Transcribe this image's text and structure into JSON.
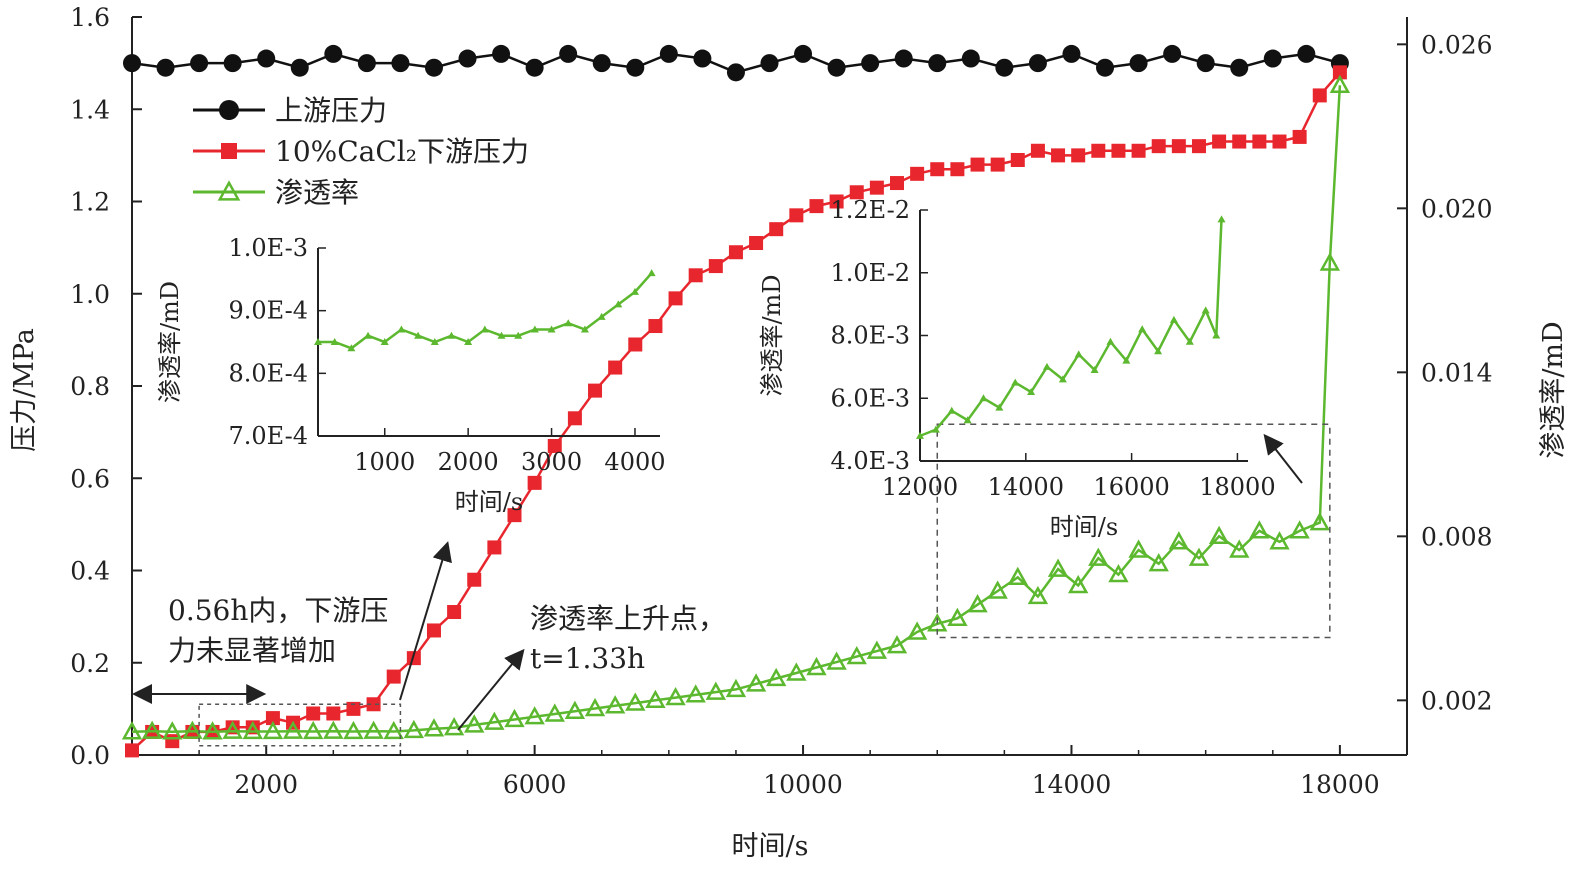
{
  "chart_data": {
    "type": "line",
    "title": "",
    "xlabel": "时间/s",
    "ylabel_left": "压力/MPa",
    "ylabel_right": "渗透率/mD",
    "xlim": [
      0,
      19000
    ],
    "ylim_left": [
      0,
      1.6
    ],
    "ylim_right": [
      0,
      0.027
    ],
    "x_ticks": [
      "2000",
      "6000",
      "10000",
      "14000",
      "18000"
    ],
    "x_tick_values": [
      2000,
      6000,
      10000,
      14000,
      18000
    ],
    "y_left_ticks": [
      "0.0",
      "0.2",
      "0.4",
      "0.6",
      "0.8",
      "1.0",
      "1.2",
      "1.4",
      "1.6"
    ],
    "y_left_tick_values": [
      0,
      0.2,
      0.4,
      0.6,
      0.8,
      1.0,
      1.2,
      1.4,
      1.6
    ],
    "y_right_ticks": [
      "0.002",
      "0.008",
      "0.014",
      "0.020",
      "0.026"
    ],
    "y_right_tick_values": [
      0.002,
      0.008,
      0.014,
      0.02,
      0.026
    ],
    "legend_position": "top-left",
    "colors": {
      "upstream": "#111111",
      "downstream": "#e8262d",
      "permeability": "#5cb82e"
    },
    "series": [
      {
        "name": "上游压力",
        "axis": "left",
        "marker": "circle",
        "x": [
          0,
          500,
          1000,
          1500,
          2000,
          2500,
          3000,
          3500,
          4000,
          4500,
          5000,
          5500,
          6000,
          6500,
          7000,
          7500,
          8000,
          8500,
          9000,
          9500,
          10000,
          10500,
          11000,
          11500,
          12000,
          12500,
          13000,
          13500,
          14000,
          14500,
          15000,
          15500,
          16000,
          16500,
          17000,
          17500,
          18000
        ],
        "values": [
          1.5,
          1.49,
          1.5,
          1.5,
          1.51,
          1.49,
          1.52,
          1.5,
          1.5,
          1.49,
          1.51,
          1.52,
          1.49,
          1.52,
          1.5,
          1.49,
          1.52,
          1.51,
          1.48,
          1.5,
          1.52,
          1.49,
          1.5,
          1.51,
          1.5,
          1.51,
          1.49,
          1.5,
          1.52,
          1.49,
          1.5,
          1.52,
          1.5,
          1.49,
          1.51,
          1.52,
          1.5
        ]
      },
      {
        "name": "10%CaCl₂下游压力",
        "axis": "left",
        "marker": "square",
        "x": [
          0,
          300,
          600,
          900,
          1200,
          1500,
          1800,
          2100,
          2400,
          2700,
          3000,
          3300,
          3600,
          3900,
          4200,
          4500,
          4800,
          5100,
          5400,
          5700,
          6000,
          6300,
          6600,
          6900,
          7200,
          7500,
          7800,
          8100,
          8400,
          8700,
          9000,
          9300,
          9600,
          9900,
          10200,
          10500,
          10800,
          11100,
          11400,
          11700,
          12000,
          12300,
          12600,
          12900,
          13200,
          13500,
          13800,
          14100,
          14400,
          14700,
          15000,
          15300,
          15600,
          15900,
          16200,
          16500,
          16800,
          17100,
          17400,
          17700,
          18000
        ],
        "values": [
          0.01,
          0.05,
          0.03,
          0.05,
          0.05,
          0.06,
          0.06,
          0.08,
          0.07,
          0.09,
          0.09,
          0.1,
          0.11,
          0.17,
          0.21,
          0.27,
          0.31,
          0.38,
          0.45,
          0.52,
          0.59,
          0.67,
          0.73,
          0.79,
          0.84,
          0.89,
          0.93,
          0.99,
          1.04,
          1.06,
          1.09,
          1.11,
          1.14,
          1.17,
          1.19,
          1.2,
          1.22,
          1.23,
          1.24,
          1.26,
          1.27,
          1.27,
          1.28,
          1.28,
          1.29,
          1.31,
          1.3,
          1.3,
          1.31,
          1.31,
          1.31,
          1.32,
          1.32,
          1.32,
          1.33,
          1.33,
          1.33,
          1.33,
          1.34,
          1.43,
          1.48
        ]
      },
      {
        "name": "渗透率",
        "axis": "right",
        "marker": "triangle",
        "x": [
          0,
          300,
          600,
          900,
          1200,
          1500,
          1800,
          2100,
          2400,
          2700,
          3000,
          3300,
          3600,
          3900,
          4200,
          4500,
          4800,
          5100,
          5400,
          5700,
          6000,
          6300,
          6600,
          6900,
          7200,
          7500,
          7800,
          8100,
          8400,
          8700,
          9000,
          9300,
          9600,
          9900,
          10200,
          10500,
          10800,
          11100,
          11400,
          11700,
          12000,
          12300,
          12600,
          12900,
          13200,
          13500,
          13800,
          14100,
          14400,
          14700,
          15000,
          15300,
          15600,
          15900,
          16200,
          16500,
          16800,
          17100,
          17400,
          17700,
          17850,
          18000
        ],
        "values": [
          0.00085,
          0.00087,
          0.00085,
          0.00087,
          0.00085,
          0.00087,
          0.00086,
          0.00086,
          0.00087,
          0.00086,
          0.00087,
          0.00086,
          0.00087,
          0.00086,
          0.0009,
          0.00096,
          0.001,
          0.0011,
          0.0012,
          0.0013,
          0.0014,
          0.0015,
          0.0016,
          0.0017,
          0.0018,
          0.0019,
          0.002,
          0.0021,
          0.0022,
          0.0023,
          0.0024,
          0.0026,
          0.0028,
          0.003,
          0.0032,
          0.0034,
          0.0036,
          0.0038,
          0.004,
          0.0045,
          0.0048,
          0.005,
          0.0055,
          0.006,
          0.0065,
          0.0058,
          0.0068,
          0.0062,
          0.0072,
          0.0066,
          0.0075,
          0.007,
          0.0078,
          0.0072,
          0.008,
          0.0075,
          0.0082,
          0.0078,
          0.0082,
          0.0085,
          0.018,
          0.0245
        ]
      }
    ],
    "annotations": [
      "0.56h内，下游压",
      "力未显著增加",
      "渗透率上升点，",
      "t=1.33h"
    ],
    "insets": [
      {
        "position": "upper-left",
        "xlabel": "时间/s",
        "ylabel": "渗透率/mD",
        "xlim": [
          200,
          4300
        ],
        "ylim": [
          0.0007,
          0.001
        ],
        "x_ticks": [
          "1000",
          "2000",
          "3000",
          "4000"
        ],
        "x_tick_values": [
          1000,
          2000,
          3000,
          4000
        ],
        "y_ticks": [
          "7.0E-4",
          "8.0E-4",
          "9.0E-4",
          "1.0E-3"
        ],
        "y_tick_values": [
          0.0007,
          0.0008,
          0.0009,
          0.001
        ],
        "x": [
          200,
          400,
          600,
          800,
          1000,
          1200,
          1400,
          1600,
          1800,
          2000,
          2200,
          2400,
          2600,
          2800,
          3000,
          3200,
          3400,
          3600,
          3800,
          4000,
          4200
        ],
        "values": [
          0.00085,
          0.00085,
          0.00084,
          0.00086,
          0.00085,
          0.00087,
          0.00086,
          0.00085,
          0.00086,
          0.00085,
          0.00087,
          0.00086,
          0.00086,
          0.00087,
          0.00087,
          0.00088,
          0.00087,
          0.00089,
          0.00091,
          0.00093,
          0.00096
        ]
      },
      {
        "position": "upper-right",
        "xlabel": "时间/s",
        "ylabel": "渗透率/mD",
        "xlim": [
          12000,
          18200
        ],
        "ylim": [
          0.004,
          0.012
        ],
        "x_ticks": [
          "12000",
          "14000",
          "16000",
          "18000"
        ],
        "x_tick_values": [
          12000,
          14000,
          16000,
          18000
        ],
        "y_ticks": [
          "4.0E-3",
          "6.0E-3",
          "8.0E-3",
          "1.0E-2",
          "1.2E-2"
        ],
        "y_tick_values": [
          0.004,
          0.006,
          0.008,
          0.01,
          0.012
        ],
        "x": [
          12000,
          12300,
          12600,
          12900,
          13200,
          13500,
          13800,
          14100,
          14400,
          14700,
          15000,
          15300,
          15600,
          15900,
          16200,
          16500,
          16800,
          17100,
          17400,
          17600,
          17700
        ],
        "values": [
          0.0048,
          0.005,
          0.0056,
          0.0053,
          0.006,
          0.0057,
          0.0065,
          0.0062,
          0.007,
          0.0066,
          0.0074,
          0.0069,
          0.0078,
          0.0072,
          0.0082,
          0.0075,
          0.0085,
          0.0078,
          0.0088,
          0.008,
          0.0117
        ]
      }
    ]
  }
}
